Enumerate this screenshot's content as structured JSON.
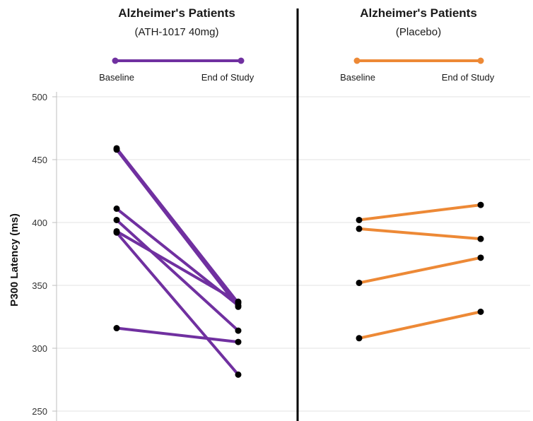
{
  "chart_data": {
    "type": "line",
    "ylabel": "P300 Latency (ms)",
    "ylim": [
      250,
      500
    ],
    "yticks": [
      250,
      300,
      350,
      400,
      450,
      500
    ],
    "grid": true,
    "categories": [
      "Baseline",
      "End of Study"
    ],
    "panels": [
      {
        "title": "Alzheimer's Patients",
        "subtitle": "(ATH-1017 40mg)",
        "color": "#7030a0",
        "legend": {
          "start_label": "Baseline",
          "end_label": "End of Study"
        },
        "pairs": [
          [
            459,
            336
          ],
          [
            458,
            333
          ],
          [
            411,
            334
          ],
          [
            402,
            314
          ],
          [
            393,
            337
          ],
          [
            392,
            279
          ],
          [
            316,
            305
          ]
        ]
      },
      {
        "title": "Alzheimer's Patients",
        "subtitle": "(Placebo)",
        "color": "#ed8936",
        "legend": {
          "start_label": "Baseline",
          "end_label": "End of Study"
        },
        "pairs": [
          [
            402,
            414
          ],
          [
            395,
            387
          ],
          [
            352,
            372
          ],
          [
            308,
            329
          ]
        ]
      }
    ]
  }
}
